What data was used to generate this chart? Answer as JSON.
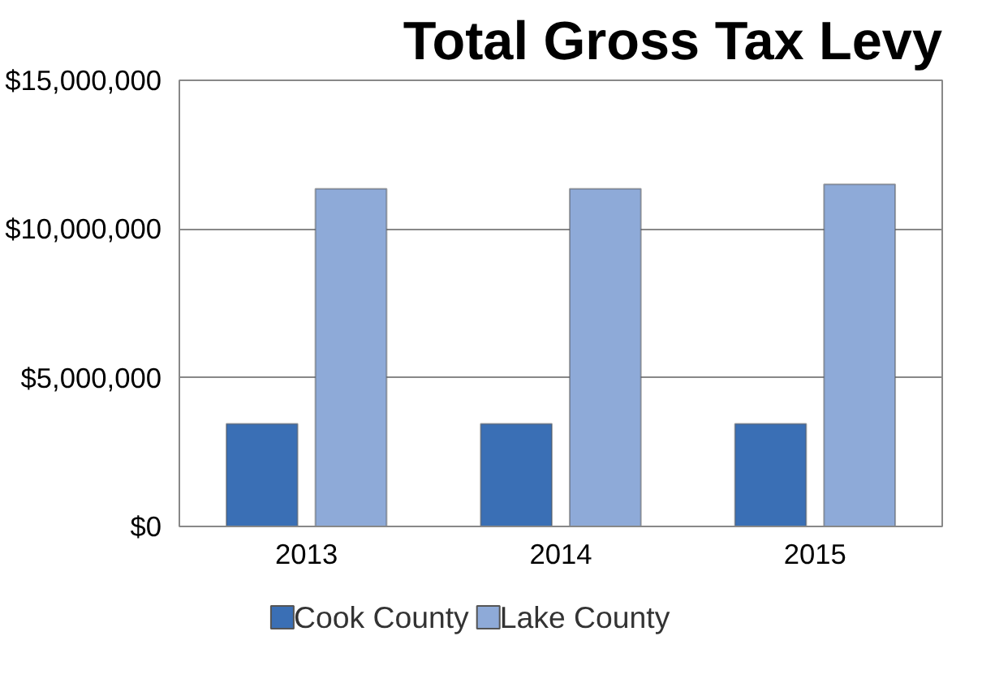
{
  "chart_data": {
    "type": "bar",
    "title": "Total Gross Tax Levy",
    "categories": [
      "2013",
      "2014",
      "2015"
    ],
    "series": [
      {
        "name": "Cook County",
        "color": "#3a6fb5",
        "values": [
          3450000,
          3450000,
          3450000
        ]
      },
      {
        "name": "Lake County",
        "color": "#8eaad8",
        "values": [
          11350000,
          11350000,
          11500000
        ]
      }
    ],
    "ylim": [
      0,
      15000000
    ],
    "yticks": [
      {
        "value": 0,
        "label": "$0"
      },
      {
        "value": 5000000,
        "label": "$5,000,000"
      },
      {
        "value": 10000000,
        "label": "$10,000,000"
      },
      {
        "value": 15000000,
        "label": "$15,000,000"
      }
    ],
    "grid": "y",
    "legend": "bottom"
  }
}
